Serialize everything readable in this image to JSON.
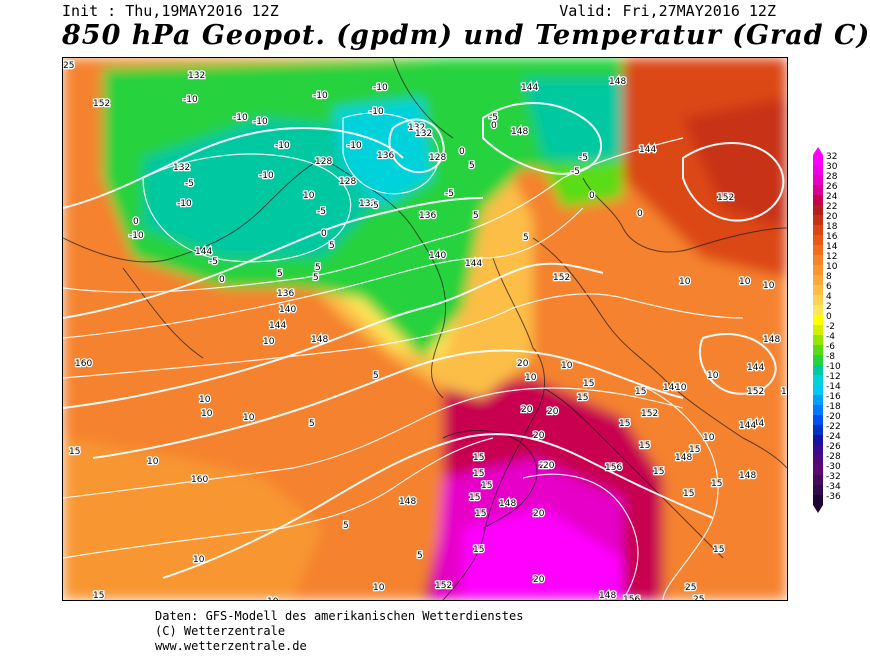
{
  "header": {
    "init": "Init : Thu,19MAY2016 12Z",
    "valid": "Valid: Fri,27MAY2016 12Z",
    "title": "850 hPa Geopot. (gpdm) und Temperatur (Grad C)"
  },
  "legend": {
    "values": [
      "32",
      "30",
      "28",
      "26",
      "24",
      "22",
      "20",
      "18",
      "16",
      "14",
      "12",
      "10",
      "8",
      "6",
      "4",
      "2",
      "0",
      "-2",
      "-4",
      "-6",
      "-8",
      "-10",
      "-12",
      "-14",
      "-16",
      "-18",
      "-20",
      "-22",
      "-24",
      "-26",
      "-28",
      "-30",
      "-32",
      "-34",
      "-36"
    ],
    "colors": [
      "#ff00ff",
      "#f200e8",
      "#e600c8",
      "#d80090",
      "#c80050",
      "#b41e1e",
      "#c83214",
      "#dc4614",
      "#e65a14",
      "#f06e1e",
      "#f5822d",
      "#f89632",
      "#faaa3c",
      "#fcbe46",
      "#fdd250",
      "#fee65a",
      "#ffff00",
      "#d2f000",
      "#96e600",
      "#5adc14",
      "#28d23c",
      "#00c8a0",
      "#00d2dc",
      "#00c8f0",
      "#00a0ff",
      "#0078ff",
      "#0050f0",
      "#0032c8",
      "#1414a0",
      "#3c0a8c",
      "#500a78",
      "#5a0a6e",
      "#460a5a",
      "#320a46",
      "#1e0532"
    ]
  },
  "map": {
    "height_labels": [
      {
        "text": "132"
      },
      {
        "text": "152"
      },
      {
        "text": "132"
      },
      {
        "text": "128"
      },
      {
        "text": "128"
      },
      {
        "text": "132"
      },
      {
        "text": "136"
      },
      {
        "text": "128"
      },
      {
        "text": "132"
      },
      {
        "text": "136"
      },
      {
        "text": "140"
      },
      {
        "text": "144"
      },
      {
        "text": "148"
      },
      {
        "text": "144"
      },
      {
        "text": "148"
      },
      {
        "text": "144"
      },
      {
        "text": "152"
      },
      {
        "text": "144"
      },
      {
        "text": "136"
      },
      {
        "text": "140"
      },
      {
        "text": "144"
      },
      {
        "text": "148"
      },
      {
        "text": "160"
      },
      {
        "text": "152"
      },
      {
        "text": "148"
      },
      {
        "text": "140"
      },
      {
        "text": "148"
      },
      {
        "text": "144"
      },
      {
        "text": "152"
      },
      {
        "text": "152"
      },
      {
        "text": "144"
      },
      {
        "text": "144"
      },
      {
        "text": "144"
      },
      {
        "text": "156"
      },
      {
        "text": "148"
      },
      {
        "text": "148"
      },
      {
        "text": "160"
      },
      {
        "text": "148"
      },
      {
        "text": "152"
      },
      {
        "text": "156"
      },
      {
        "text": "132"
      },
      {
        "text": "148"
      }
    ],
    "temp_labels": [
      {
        "text": "-10"
      },
      {
        "text": "-10"
      },
      {
        "text": "-10"
      },
      {
        "text": "-10"
      },
      {
        "text": "-10"
      },
      {
        "text": "-10"
      },
      {
        "text": "-10"
      },
      {
        "text": "-10"
      },
      {
        "text": "-10"
      },
      {
        "text": "-5"
      },
      {
        "text": "-5"
      },
      {
        "text": "-5"
      },
      {
        "text": "-5"
      },
      {
        "text": "-5"
      },
      {
        "text": "-5"
      },
      {
        "text": "-5"
      },
      {
        "text": "-10"
      },
      {
        "text": "-10"
      },
      {
        "text": "0"
      },
      {
        "text": "0"
      },
      {
        "text": "0"
      },
      {
        "text": "0"
      },
      {
        "text": "0"
      },
      {
        "text": "0"
      },
      {
        "text": "0"
      },
      {
        "text": "5"
      },
      {
        "text": "5"
      },
      {
        "text": "5"
      },
      {
        "text": "5"
      },
      {
        "text": "5"
      },
      {
        "text": "5"
      },
      {
        "text": "5"
      },
      {
        "text": "5"
      },
      {
        "text": "5"
      },
      {
        "text": "5"
      },
      {
        "text": "5"
      },
      {
        "text": "5"
      },
      {
        "text": "10"
      },
      {
        "text": "10"
      },
      {
        "text": "10"
      },
      {
        "text": "10"
      },
      {
        "text": "10"
      },
      {
        "text": "10"
      },
      {
        "text": "10"
      },
      {
        "text": "10"
      },
      {
        "text": "10"
      },
      {
        "text": "10"
      },
      {
        "text": "10"
      },
      {
        "text": "10"
      },
      {
        "text": "10"
      },
      {
        "text": "10"
      },
      {
        "text": "10"
      },
      {
        "text": "10"
      },
      {
        "text": "10"
      },
      {
        "text": "15"
      },
      {
        "text": "15"
      },
      {
        "text": "15"
      },
      {
        "text": "15"
      },
      {
        "text": "15"
      },
      {
        "text": "15"
      },
      {
        "text": "15"
      },
      {
        "text": "15"
      },
      {
        "text": "15"
      },
      {
        "text": "15"
      },
      {
        "text": "15"
      },
      {
        "text": "15"
      },
      {
        "text": "15"
      },
      {
        "text": "15"
      },
      {
        "text": "15"
      },
      {
        "text": "15"
      },
      {
        "text": "15"
      },
      {
        "text": "15"
      },
      {
        "text": "20"
      },
      {
        "text": "20"
      },
      {
        "text": "20"
      },
      {
        "text": "20"
      },
      {
        "text": "20"
      },
      {
        "text": "20"
      },
      {
        "text": "20"
      },
      {
        "text": "20"
      },
      {
        "text": "25"
      },
      {
        "text": "25"
      },
      {
        "text": "25"
      },
      {
        "text": "25"
      }
    ]
  },
  "footer": {
    "line1": "Daten: GFS-Modell des amerikanischen Wetterdienstes",
    "line2": "(C) Wetterzentrale",
    "line3": "www.wetterzentrale.de"
  }
}
